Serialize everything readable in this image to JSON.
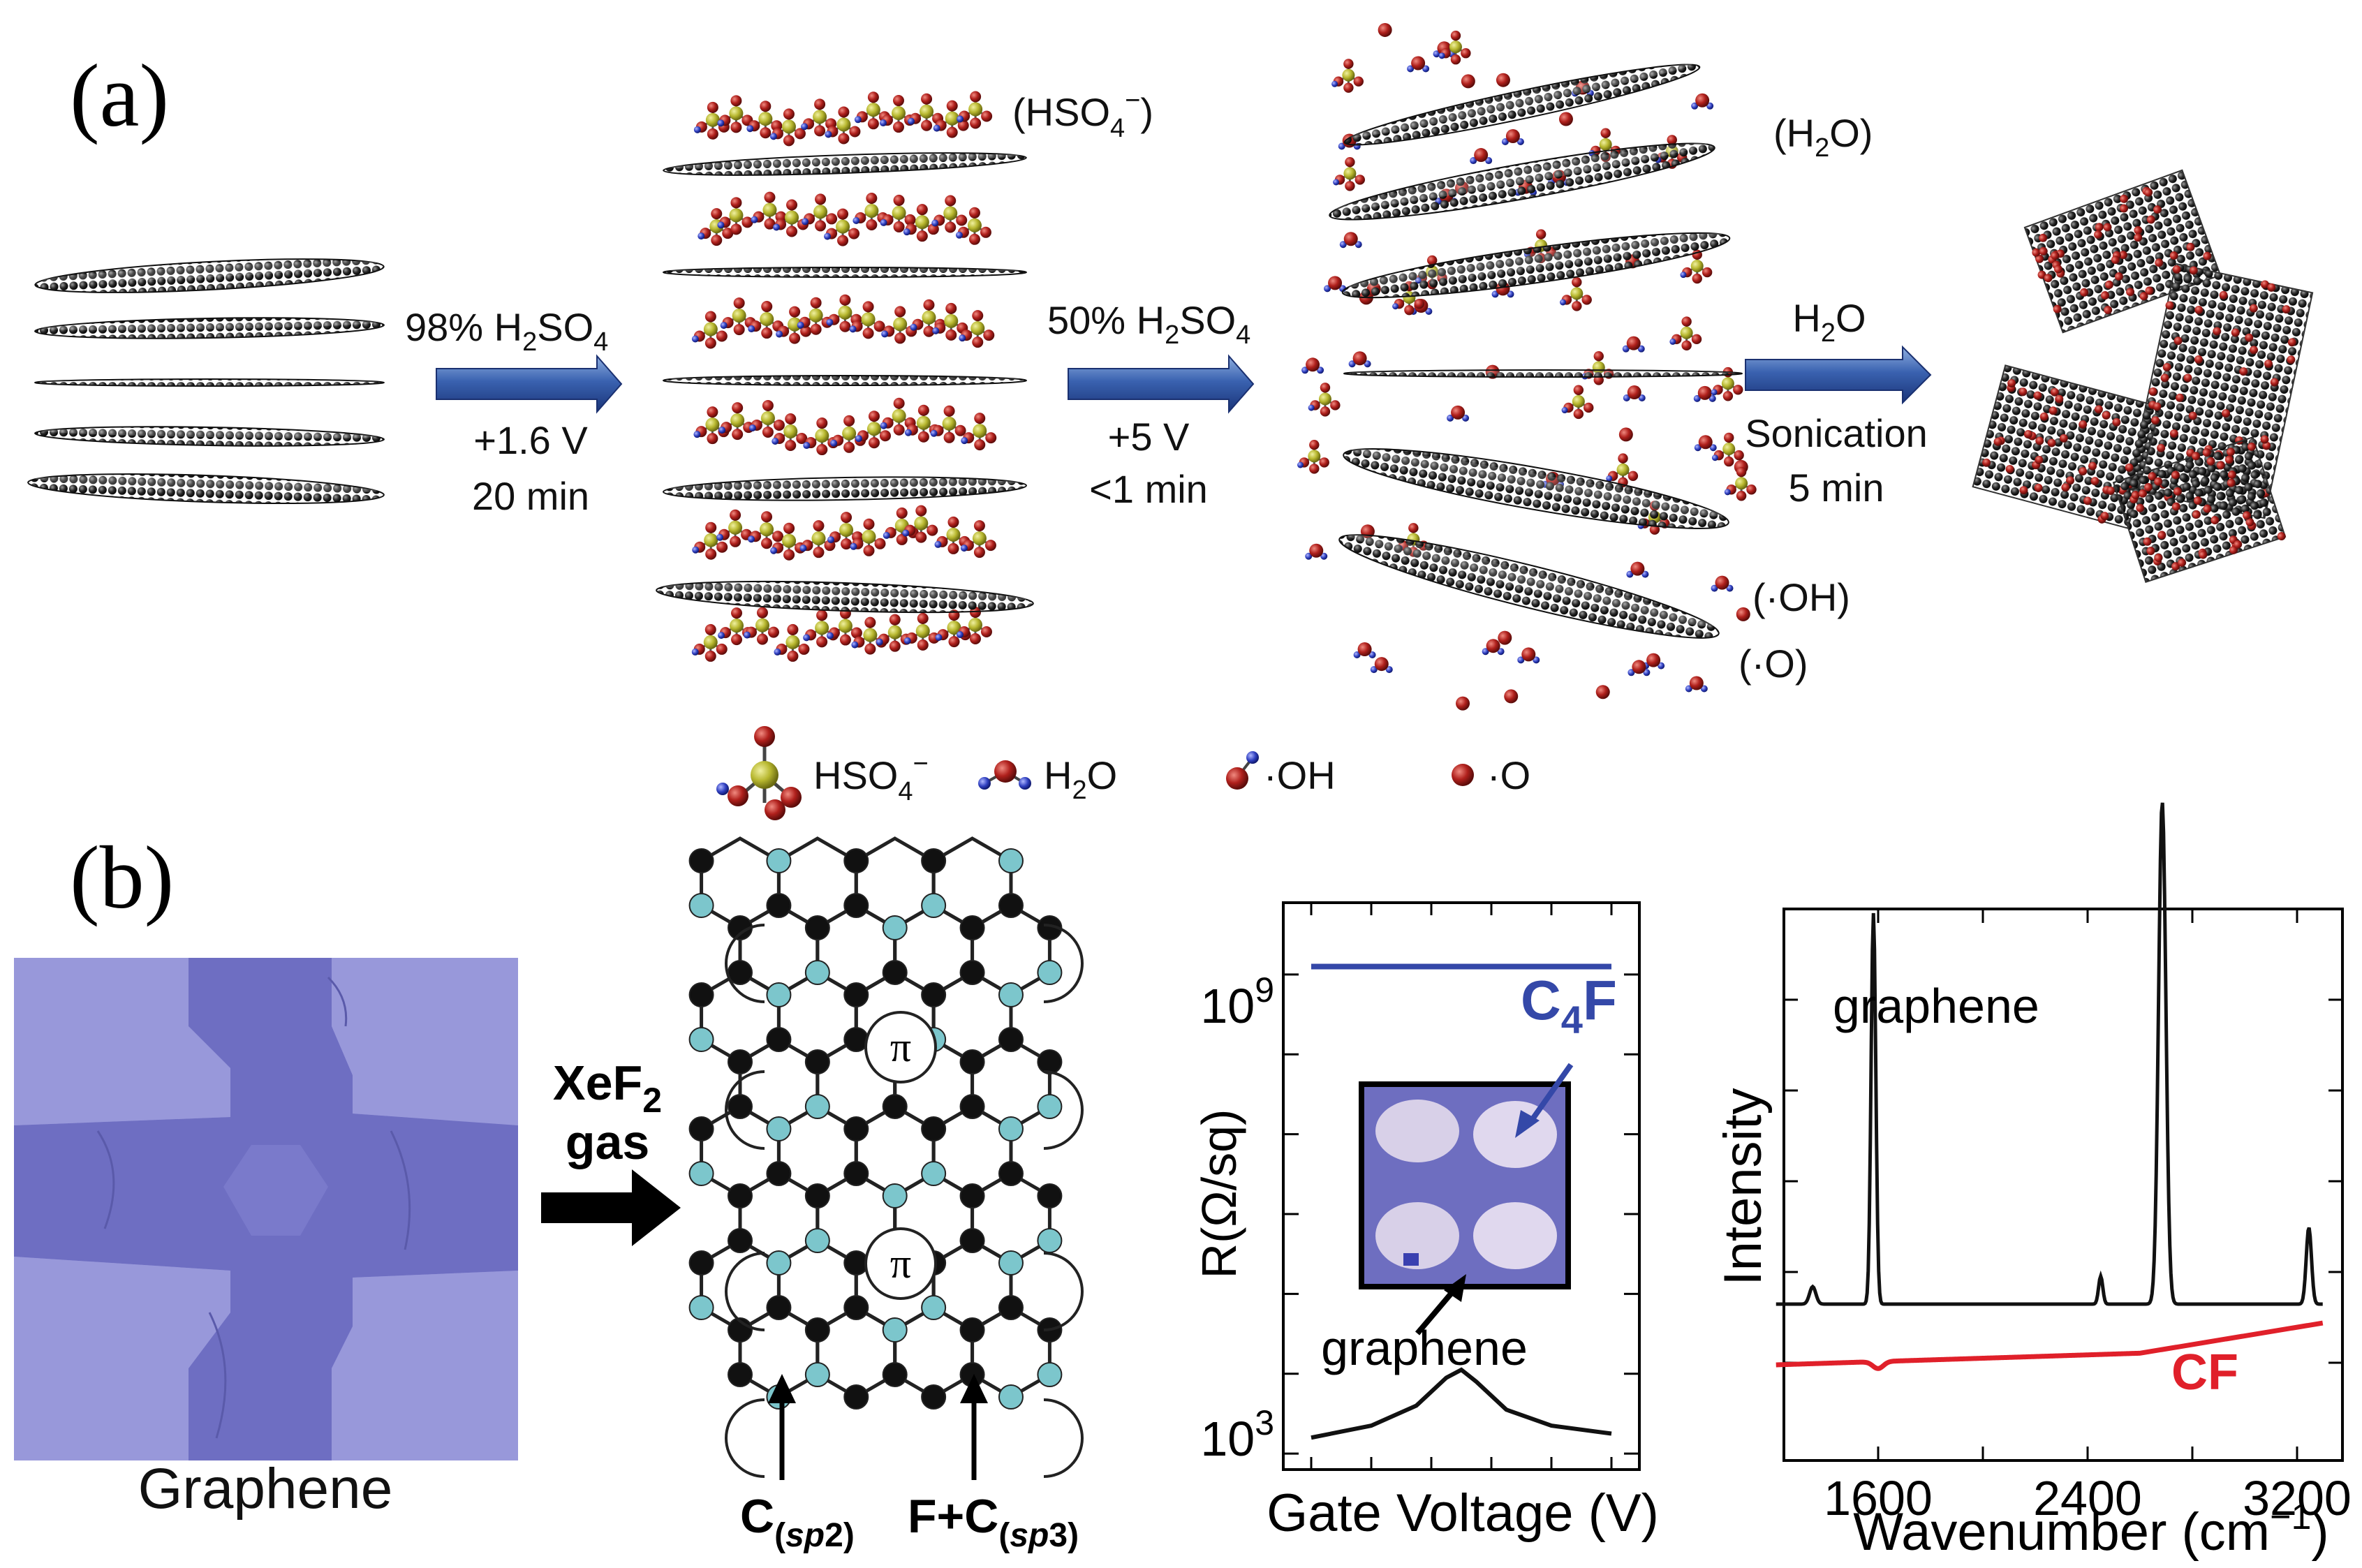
{
  "panel_a": {
    "label": "(a)",
    "step1": {
      "reagent": "98% H",
      "reagent_sub": "2",
      "reagent_tail": "SO",
      "reagent_sub2": "4",
      "voltage": "+1.6 V",
      "time": "20 min"
    },
    "step2": {
      "reagent": "50% H",
      "reagent_sub": "2",
      "reagent_tail": "SO",
      "reagent_sub2": "4",
      "voltage": "+5 V",
      "time": "<1 min"
    },
    "step3": {
      "reagent": "H",
      "reagent_sub": "2",
      "reagent_tail": "O",
      "process": "Sonication",
      "time": "5 min"
    },
    "annotations": {
      "hso4": {
        "open": "(HSO",
        "sub": "4",
        "sup": "−",
        "close": ")"
      },
      "h2o": {
        "open": "(H",
        "sub": "2",
        "close": "O)"
      },
      "oh": "(·OH)",
      "o": "(·O)"
    },
    "legend": {
      "hso4": {
        "text": "HSO",
        "sub": "4",
        "sup": "−"
      },
      "h2o": {
        "text": "H",
        "sub": "2",
        "tail": "O"
      },
      "oh": "·OH",
      "o": "·O"
    }
  },
  "panel_b": {
    "label": "(b)",
    "device_label": "Graphene",
    "arrow_label": {
      "line1": "XeF",
      "line1_sub": "2",
      "line2": "gas"
    },
    "lattice": {
      "pi_symbol": "π",
      "sp2_label": {
        "text": "C",
        "sub": "(sp2)",
        "sub_italic": "sp",
        "sub_num": "2"
      },
      "sp3_label": {
        "text": "F+C",
        "sub_italic": "sp",
        "sub_num": "3"
      }
    },
    "colors": {
      "purple_device": "#8a88d4",
      "fluorine": "#7cc6cc",
      "carbon": "#111111",
      "cf_red": "#e0202a",
      "c4f_blue": "#3448a8"
    }
  },
  "chart_data": [
    {
      "type": "line",
      "title": "",
      "xlabel": "Gate Voltage (V)",
      "ylabel": "R(Ω/sq)",
      "yscale": "log",
      "yticks": [
        "10^3",
        "10^9"
      ],
      "ytick_base": "10",
      "ytick_exps": [
        "3",
        "9"
      ],
      "series": [
        {
          "name": "C4F",
          "name_main": "C",
          "name_sub": "4",
          "name_tail": "F",
          "color": "#3448a8",
          "x": [
            -1,
            1
          ],
          "log10_y": [
            9.1,
            9.1
          ]
        },
        {
          "name": "graphene",
          "color": "#111111",
          "x": [
            -1,
            -0.6,
            -0.3,
            -0.1,
            0,
            0.1,
            0.3,
            0.6,
            1
          ],
          "log10_y": [
            3.2,
            3.35,
            3.6,
            3.95,
            4.05,
            3.9,
            3.55,
            3.35,
            3.25
          ]
        }
      ],
      "inset_labels": [
        "C4F",
        "graphene"
      ]
    },
    {
      "type": "line",
      "title": "",
      "xlabel": "Wavenumber (cm",
      "xlabel_sup": "−1",
      "xlabel_tail": ")",
      "ylabel": "Intensity",
      "xticks": [
        "1600",
        "2400",
        "3200"
      ],
      "xlim": [
        1200,
        3300
      ],
      "series": [
        {
          "name": "graphene",
          "color": "#111111"
        },
        {
          "name": "CF",
          "color": "#e0202a"
        }
      ]
    }
  ]
}
